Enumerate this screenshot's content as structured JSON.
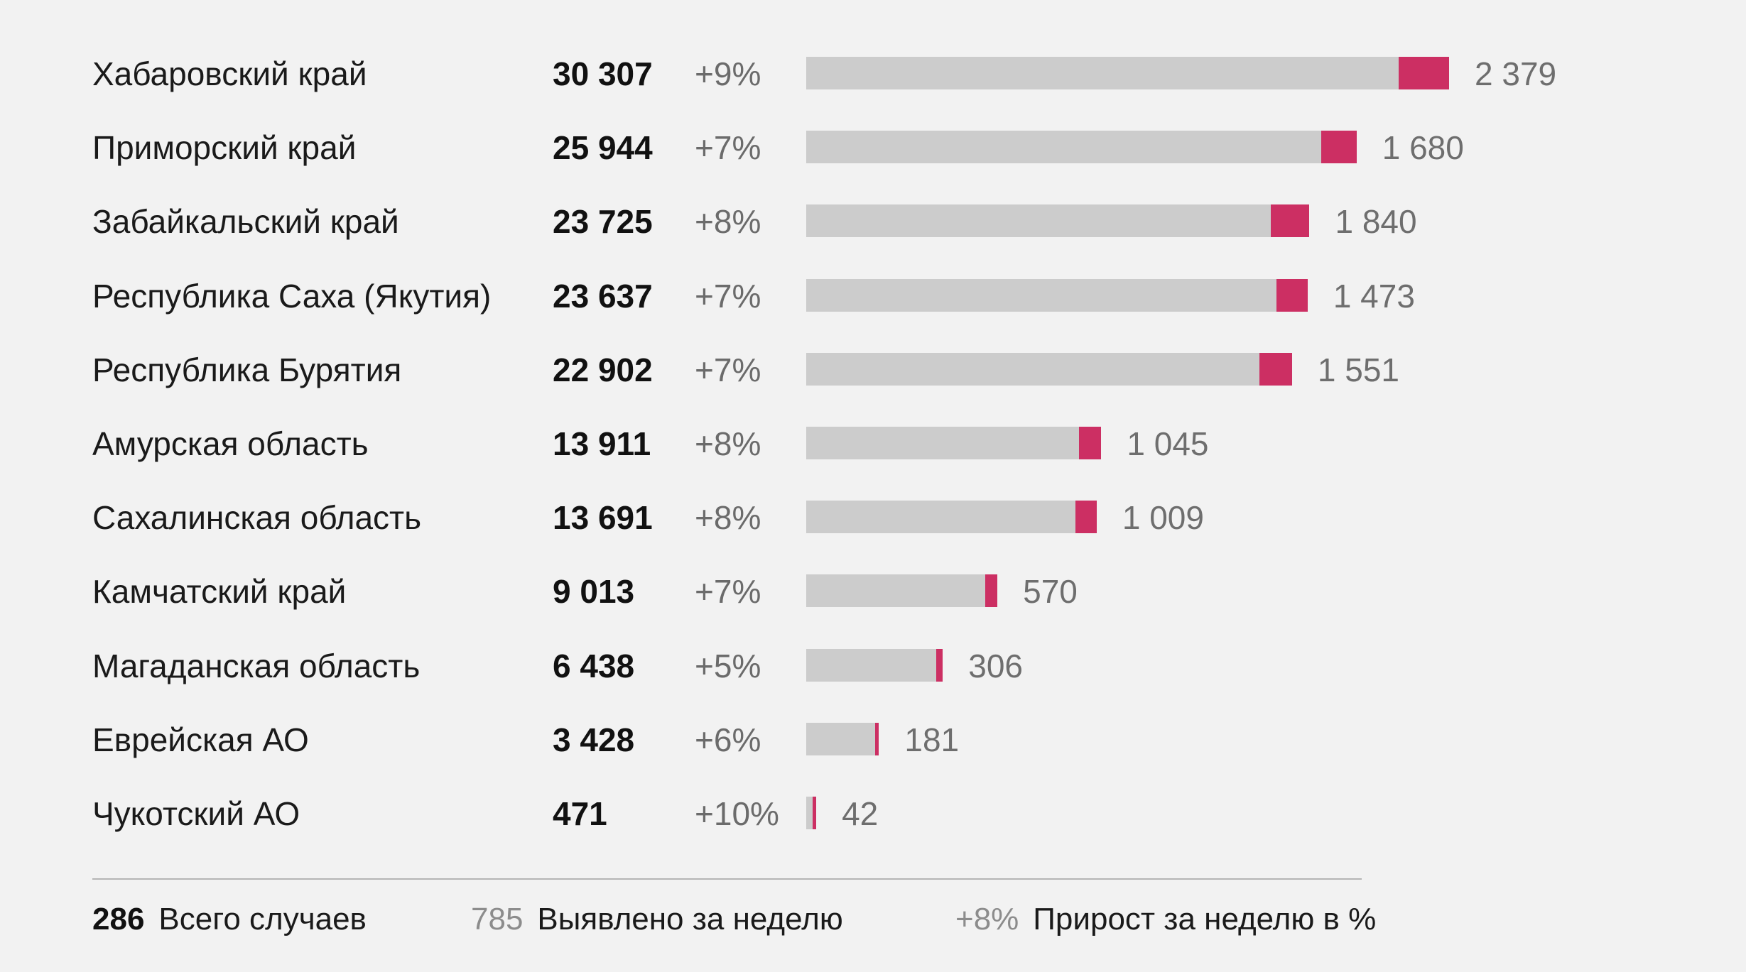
{
  "chart_data": {
    "type": "bar",
    "categories": [
      "Хабаровский край",
      "Приморский край",
      "Забайкальский край",
      "Республика Саха (Якутия)",
      "Республика Бурятия",
      "Амурская область",
      "Сахалинская область",
      "Камчатский край",
      "Магаданская область",
      "Еврейская АО",
      "Чукотский АО"
    ],
    "totals": [
      30307,
      25944,
      23725,
      23637,
      22902,
      13911,
      13691,
      9013,
      6438,
      3428,
      471
    ],
    "totals_label": [
      "30 307",
      "25 944",
      "23 725",
      "23 637",
      "22 902",
      "13 911",
      "13 691",
      "9 013",
      "6 438",
      "3 428",
      "471"
    ],
    "growth": [
      "+9%",
      "+7%",
      "+8%",
      "+7%",
      "+7%",
      "+8%",
      "+8%",
      "+7%",
      "+5%",
      "+6%",
      "+10%"
    ],
    "weekly": [
      2379,
      1680,
      1840,
      1473,
      1551,
      1045,
      1009,
      570,
      306,
      181,
      42
    ],
    "weekly_label": [
      "2 379",
      "1 680",
      "1 840",
      "1 473",
      "1 551",
      "1 045",
      "1 009",
      "570",
      "306",
      "181",
      "42"
    ],
    "colors": {
      "base": "#cccccc",
      "weekly": "#cc2f63"
    },
    "legend": {
      "total_value": "286",
      "total_label": "Всего случаев",
      "weekly_value": "785",
      "weekly_label": "Выявлено за неделю",
      "growth_value": "+8%",
      "growth_label": "Прирост за неделю в %"
    }
  }
}
